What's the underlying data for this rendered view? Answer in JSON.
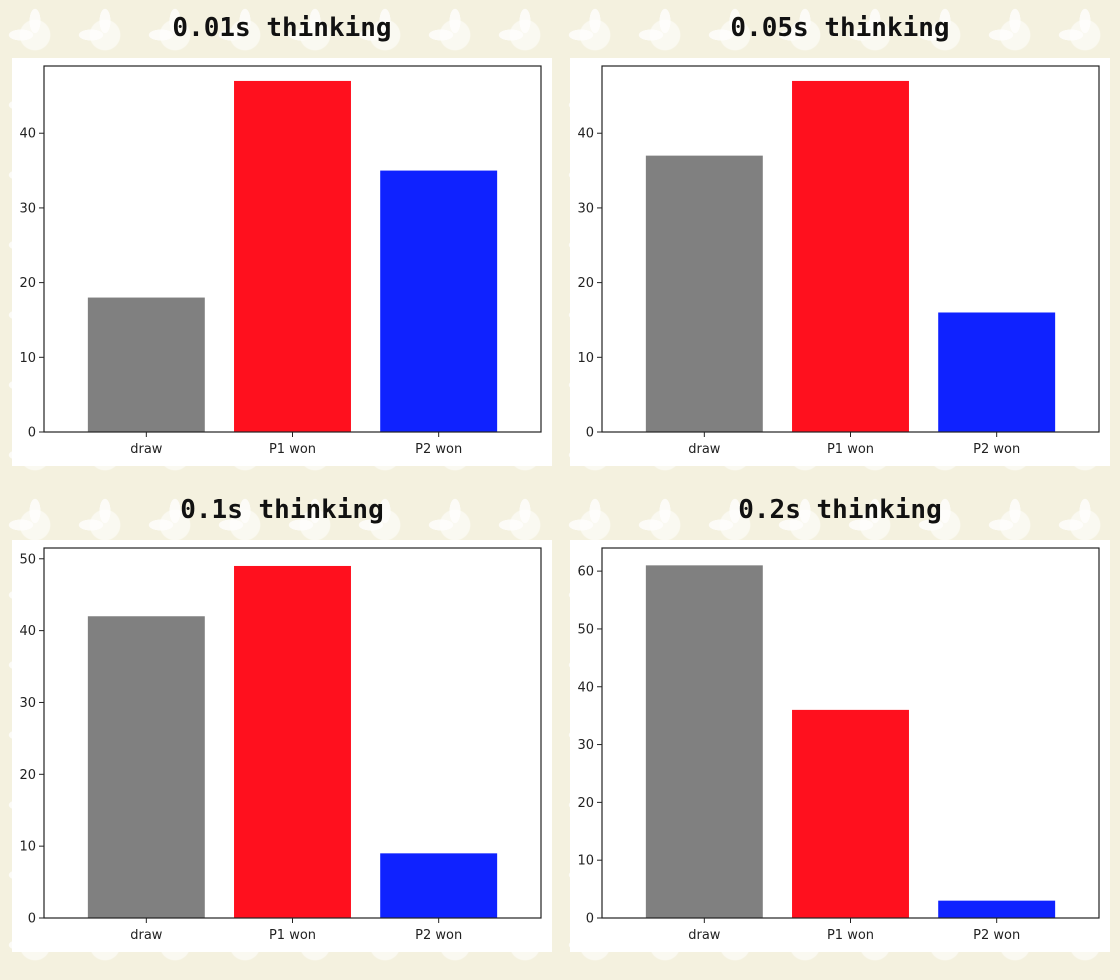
{
  "chart_data": [
    {
      "type": "bar",
      "title": "0.01s thinking",
      "categories": [
        "draw",
        "P1 won",
        "P2 won"
      ],
      "values": [
        18,
        47,
        35
      ],
      "colors": [
        "#808080",
        "#ff101e",
        "#0f22ff"
      ],
      "ylim": [
        0,
        49
      ],
      "yticks": [
        0,
        10,
        20,
        30,
        40
      ],
      "xlabel": "",
      "ylabel": ""
    },
    {
      "type": "bar",
      "title": "0.05s thinking",
      "categories": [
        "draw",
        "P1 won",
        "P2 won"
      ],
      "values": [
        37,
        47,
        16
      ],
      "colors": [
        "#808080",
        "#ff101e",
        "#0f22ff"
      ],
      "ylim": [
        0,
        49
      ],
      "yticks": [
        0,
        10,
        20,
        30,
        40
      ],
      "xlabel": "",
      "ylabel": ""
    },
    {
      "type": "bar",
      "title": "0.1s thinking",
      "categories": [
        "draw",
        "P1 won",
        "P2 won"
      ],
      "values": [
        42,
        49,
        9
      ],
      "colors": [
        "#808080",
        "#ff101e",
        "#0f22ff"
      ],
      "ylim": [
        0,
        51.5
      ],
      "yticks": [
        0,
        10,
        20,
        30,
        40,
        50
      ],
      "xlabel": "",
      "ylabel": ""
    },
    {
      "type": "bar",
      "title": "0.2s thinking",
      "categories": [
        "draw",
        "P1 won",
        "P2 won"
      ],
      "values": [
        61,
        36,
        3
      ],
      "colors": [
        "#808080",
        "#ff101e",
        "#0f22ff"
      ],
      "ylim": [
        0,
        64
      ],
      "yticks": [
        0,
        10,
        20,
        30,
        40,
        50,
        60
      ],
      "xlabel": "",
      "ylabel": ""
    }
  ]
}
